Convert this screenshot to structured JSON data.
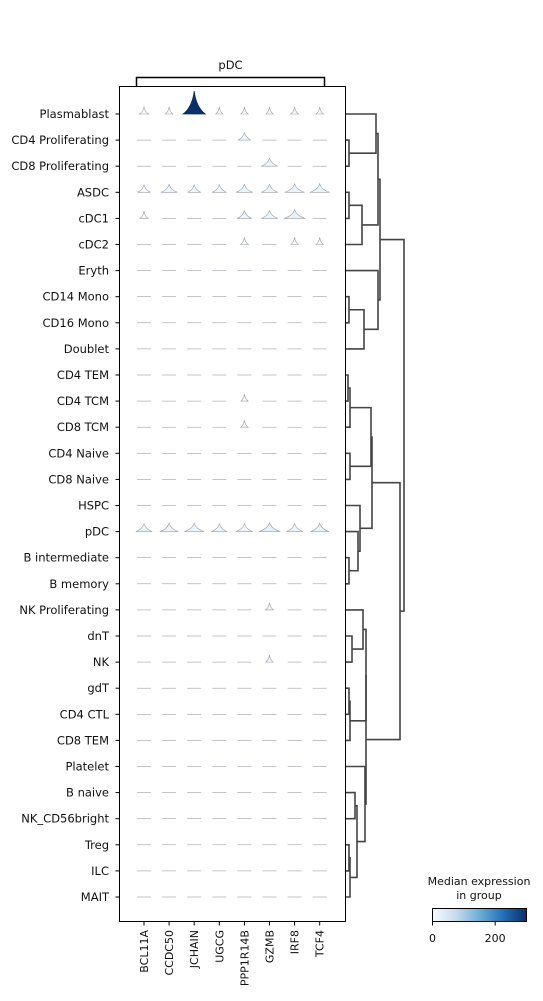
{
  "chart_data": {
    "type": "stacked-violin",
    "group_label": "pDC",
    "genes": [
      "BCL11A",
      "CCDC50",
      "JCHAIN",
      "UGCG",
      "PPP1R14B",
      "GZMB",
      "IRF8",
      "TCF4"
    ],
    "cell_types": [
      "Plasmablast",
      "CD4 Proliferating",
      "CD8 Proliferating",
      "ASDC",
      "cDC1",
      "cDC2",
      "Eryth",
      "CD14 Mono",
      "CD16 Mono",
      "Doublet",
      "CD4 TEM",
      "CD4 TCM",
      "CD8 TCM",
      "CD4 Naive",
      "CD8 Naive",
      "HSPC",
      "pDC",
      "B intermediate",
      "B memory",
      "NK Proliferating",
      "dnT",
      "NK",
      "gdT",
      "CD4 CTL",
      "CD8 TEM",
      "Platelet",
      "B naive",
      "NK_CD56bright",
      "Treg",
      "ILC",
      "MAIT"
    ],
    "median_expression": [
      [
        5,
        2,
        300,
        2,
        2,
        2,
        3,
        2
      ],
      [
        0,
        0,
        0,
        0,
        10,
        0,
        0,
        0
      ],
      [
        0,
        0,
        0,
        0,
        0,
        15,
        0,
        0
      ],
      [
        10,
        15,
        10,
        12,
        15,
        15,
        20,
        20
      ],
      [
        3,
        0,
        0,
        0,
        12,
        15,
        22,
        0
      ],
      [
        0,
        0,
        0,
        0,
        3,
        0,
        2,
        2
      ],
      [
        0,
        0,
        0,
        0,
        0,
        0,
        0,
        0
      ],
      [
        0,
        0,
        0,
        0,
        0,
        0,
        0,
        0
      ],
      [
        0,
        0,
        0,
        0,
        0,
        0,
        0,
        0
      ],
      [
        0,
        0,
        0,
        0,
        0,
        0,
        0,
        0
      ],
      [
        0,
        0,
        0,
        0,
        0,
        0,
        0,
        0
      ],
      [
        0,
        0,
        0,
        0,
        2,
        0,
        0,
        0
      ],
      [
        0,
        0,
        0,
        0,
        2,
        0,
        0,
        0
      ],
      [
        0,
        0,
        0,
        0,
        0,
        0,
        0,
        0
      ],
      [
        0,
        0,
        0,
        0,
        0,
        0,
        0,
        0
      ],
      [
        0,
        0,
        0,
        0,
        0,
        0,
        0,
        0
      ],
      [
        15,
        18,
        20,
        14,
        16,
        25,
        15,
        18
      ],
      [
        0,
        0,
        0,
        0,
        0,
        0,
        0,
        0
      ],
      [
        0,
        0,
        0,
        0,
        0,
        0,
        0,
        0
      ],
      [
        0,
        0,
        0,
        0,
        0,
        3,
        0,
        0
      ],
      [
        0,
        0,
        0,
        0,
        0,
        0,
        0,
        0
      ],
      [
        0,
        0,
        0,
        0,
        0,
        2,
        0,
        0
      ],
      [
        0,
        0,
        0,
        0,
        0,
        0,
        0,
        0
      ],
      [
        0,
        0,
        0,
        0,
        0,
        0,
        0,
        0
      ],
      [
        0,
        0,
        0,
        0,
        0,
        0,
        0,
        0
      ],
      [
        0,
        0,
        0,
        0,
        0,
        0,
        0,
        0
      ],
      [
        0,
        0,
        0,
        0,
        0,
        0,
        0,
        0
      ],
      [
        0,
        0,
        0,
        0,
        0,
        0,
        0,
        0
      ],
      [
        0,
        0,
        0,
        0,
        0,
        0,
        0,
        0
      ],
      [
        0,
        0,
        0,
        0,
        0,
        0,
        0,
        0
      ],
      [
        0,
        0,
        0,
        0,
        0,
        0,
        0,
        0
      ]
    ],
    "colorbar": {
      "title": "Median expression\nin group",
      "ticks": [
        "0",
        "200"
      ],
      "range": [
        0,
        300
      ],
      "colormap": "Blues",
      "colors": [
        "#f7fbff",
        "#c6dbef",
        "#6baed6",
        "#2171b5",
        "#08306b"
      ]
    }
  }
}
